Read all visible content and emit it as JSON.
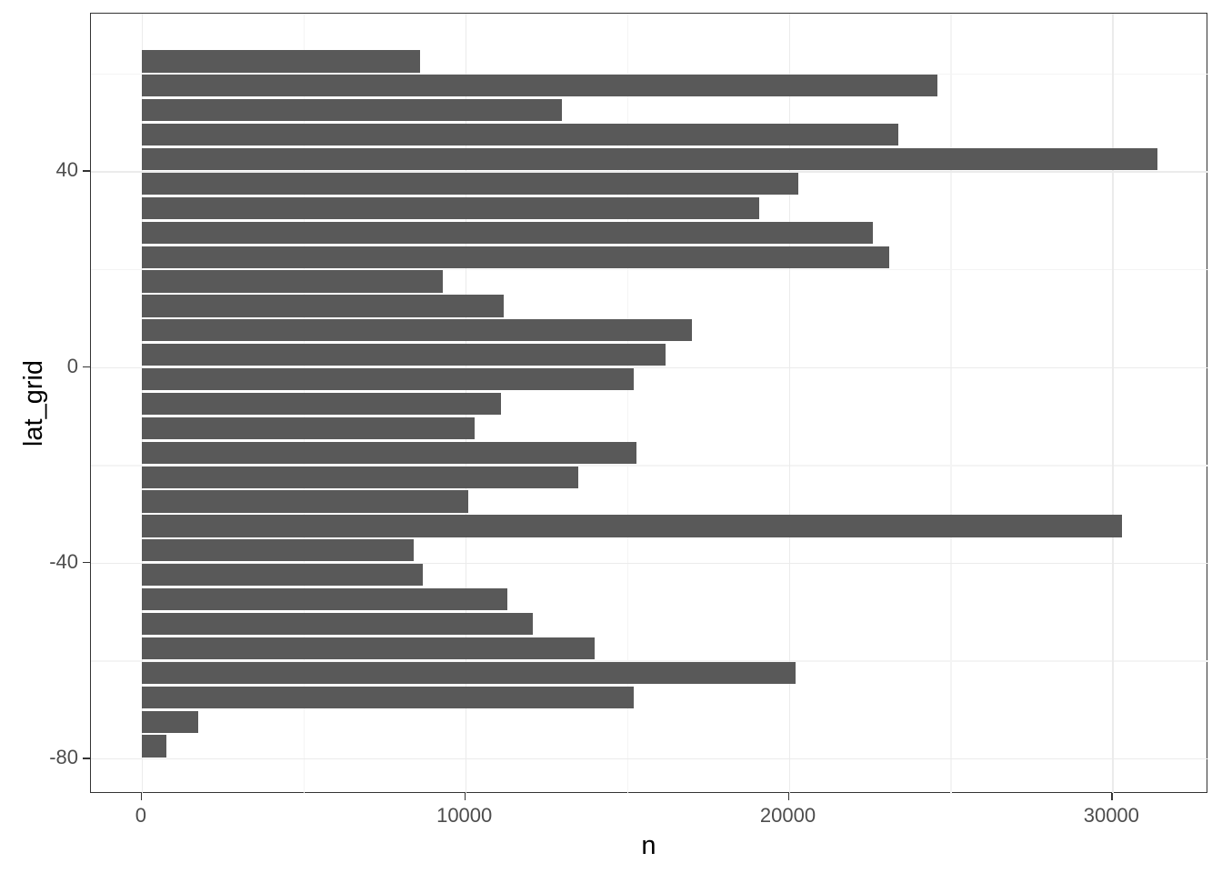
{
  "chart_data": {
    "type": "bar",
    "orientation": "horizontal",
    "title": "",
    "xlabel": "n",
    "ylabel": "lat_grid",
    "categories": [
      62.5,
      57.5,
      52.5,
      47.5,
      42.5,
      37.5,
      32.5,
      27.5,
      22.5,
      17.5,
      12.5,
      7.5,
      2.5,
      -2.5,
      -7.5,
      -12.5,
      -17.5,
      -22.5,
      -27.5,
      -32.5,
      -37.5,
      -42.5,
      -47.5,
      -52.5,
      -57.5,
      -62.5,
      -67.5,
      -72.5,
      -77.5
    ],
    "values": [
      8600,
      24600,
      13000,
      23400,
      31400,
      20300,
      19100,
      22600,
      23100,
      9300,
      11200,
      17000,
      16200,
      15200,
      11100,
      10300,
      15300,
      13500,
      10100,
      30300,
      8400,
      8700,
      11300,
      12100,
      14000,
      20200,
      15200,
      1750,
      760
    ],
    "x_major_ticks": [
      0,
      10000,
      20000,
      30000
    ],
    "x_minor_ticks": [
      5000,
      15000,
      25000
    ],
    "y_major_ticks": [
      40,
      0,
      -40,
      -80
    ],
    "y_minor_ticks": [
      60,
      20,
      -20,
      -60
    ],
    "xlim": [
      -1570,
      32970
    ],
    "ylim": [
      -87.25,
      72.25
    ],
    "bar_width_units": 4.5,
    "grid": "on",
    "legend": "none",
    "colors": {
      "bar_fill": "#595959",
      "grid_major": "#ebebeb",
      "grid_minor": "#f4f4f4",
      "panel_border": "#333333",
      "tick_mark": "#333333",
      "tick_label": "#4d4d4d",
      "axis_title": "#000000",
      "background": "#ffffff"
    }
  }
}
